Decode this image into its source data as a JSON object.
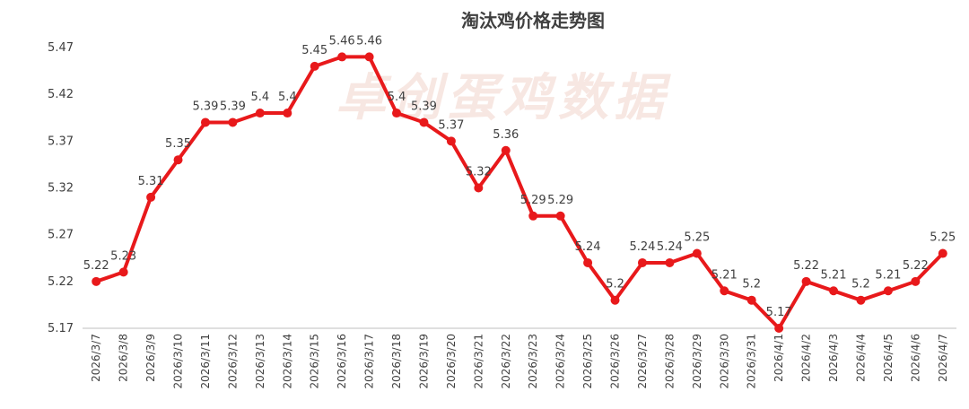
{
  "chart_data": {
    "type": "line",
    "title": "淘汰鸡价格走势图",
    "watermark": "卓创蛋鸡数据",
    "xlabel": "",
    "ylabel": "",
    "ylim": [
      5.17,
      5.47
    ],
    "yticks": [
      "5.17",
      "5.22",
      "5.27",
      "5.32",
      "5.37",
      "5.42",
      "5.47"
    ],
    "grid": false,
    "color": "#e8191b",
    "categories": [
      "2026/3/7",
      "2026/3/8",
      "2026/3/9",
      "2026/3/10",
      "2026/3/11",
      "2026/3/12",
      "2026/3/13",
      "2026/3/14",
      "2026/3/15",
      "2026/3/16",
      "2026/3/17",
      "2026/3/18",
      "2026/3/19",
      "2026/3/20",
      "2026/3/21",
      "2026/3/22",
      "2026/3/23",
      "2026/3/24",
      "2026/3/25",
      "2026/3/26",
      "2026/3/27",
      "2026/3/28",
      "2026/3/29",
      "2026/3/30",
      "2026/3/31",
      "2026/4/1",
      "2026/4/2",
      "2026/4/3",
      "2026/4/4",
      "2026/4/5",
      "2026/4/6",
      "2026/4/7"
    ],
    "values": [
      5.22,
      5.23,
      5.31,
      5.35,
      5.39,
      5.39,
      5.4,
      5.4,
      5.45,
      5.46,
      5.46,
      5.4,
      5.39,
      5.37,
      5.32,
      5.36,
      5.29,
      5.29,
      5.24,
      5.2,
      5.24,
      5.24,
      5.25,
      5.21,
      5.2,
      5.17,
      5.22,
      5.21,
      5.2,
      5.21,
      5.22,
      5.25
    ]
  }
}
